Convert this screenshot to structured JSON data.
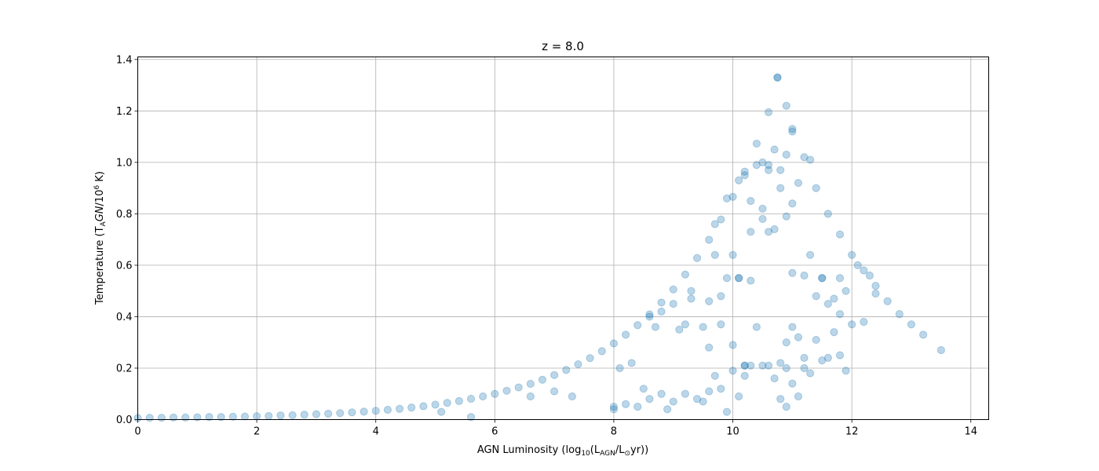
{
  "chart_data": {
    "type": "scatter",
    "title": "z = 8.0",
    "xlabel": "AGN Luminosity (log10(LAGN/L⊙yr))",
    "xlabel_parts": {
      "prefix": "AGN Luminosity (log",
      "sub1": "10",
      "mid": "(L",
      "sub2": "AGN",
      "mid2": "/L",
      "sub3": "⊙",
      "suffix": "yr))"
    },
    "ylabel": "Temperature (TAGN/10^6 K)",
    "ylabel_parts": {
      "prefix": "Temperature (T",
      "sub": "A",
      "italic": "GN",
      "mid": "/10",
      "sup": "6",
      "suffix": " K)"
    },
    "xlim": [
      0,
      14.3
    ],
    "ylim": [
      0,
      1.41
    ],
    "xticks": [
      0,
      2,
      4,
      6,
      8,
      10,
      12,
      14
    ],
    "xtick_labels": [
      "0",
      "2",
      "4",
      "6",
      "8",
      "10",
      "12",
      "14"
    ],
    "yticks": [
      0.0,
      0.2,
      0.4,
      0.6,
      0.8,
      1.0,
      1.2,
      1.4
    ],
    "ytick_labels": [
      "0.0",
      "0.2",
      "0.4",
      "0.6",
      "0.8",
      "1.0",
      "1.2",
      "1.4"
    ],
    "grid": true,
    "marker_color": "#1f77b4",
    "marker_alpha": 0.3,
    "series": [
      {
        "x": [
          8.0,
          8.2,
          8.4,
          8.5,
          8.6,
          8.8,
          8.9,
          9.0,
          9.2,
          9.4,
          9.5,
          9.6,
          9.7,
          9.8,
          9.9,
          10.0,
          10.1,
          10.2,
          10.3,
          10.5,
          10.7,
          10.8,
          10.9,
          11.0,
          11.1,
          11.2,
          11.3,
          11.5,
          11.6,
          11.7,
          11.8,
          11.9,
          12.0,
          12.2,
          8.1,
          8.3,
          8.6,
          8.8,
          9.1,
          9.3,
          9.5,
          9.8,
          10.0,
          10.2,
          10.4,
          10.6,
          10.8,
          11.0,
          11.2,
          11.4,
          11.6,
          11.8,
          9.6,
          9.9,
          10.1,
          10.3,
          10.5,
          10.7,
          10.9,
          11.1,
          11.3,
          11.5,
          11.7,
          9.0,
          9.3,
          9.7,
          10.0,
          10.3,
          10.6,
          10.9,
          11.2,
          11.5,
          11.9,
          12.1,
          12.3,
          8.7,
          9.2,
          9.6,
          10.1,
          10.6,
          11.0,
          11.4,
          11.8,
          9.9,
          10.2,
          10.5,
          10.8,
          11.1,
          9.7,
          10.1,
          10.4,
          10.7,
          11.0,
          11.3,
          10.3,
          10.6,
          10.9,
          10.5,
          10.8,
          11.0,
          5.1,
          5.6,
          6.6,
          7.0,
          7.3,
          8.0,
          12.4,
          9.8,
          10.9,
          10.2
        ],
        "y": [
          0.04,
          0.06,
          0.05,
          0.12,
          0.08,
          0.1,
          0.04,
          0.07,
          0.1,
          0.08,
          0.07,
          0.11,
          0.17,
          0.12,
          0.03,
          0.19,
          0.09,
          0.17,
          0.21,
          0.21,
          0.16,
          0.08,
          0.05,
          0.14,
          0.09,
          0.2,
          0.18,
          0.23,
          0.24,
          0.34,
          0.25,
          0.19,
          0.37,
          0.38,
          0.2,
          0.22,
          0.4,
          0.42,
          0.35,
          0.47,
          0.36,
          0.37,
          0.29,
          0.21,
          0.36,
          0.21,
          0.22,
          0.36,
          0.24,
          0.31,
          0.45,
          0.55,
          0.46,
          0.55,
          0.55,
          0.54,
          0.82,
          0.74,
          0.3,
          0.32,
          0.64,
          0.55,
          0.47,
          0.45,
          0.5,
          0.64,
          0.64,
          0.73,
          0.73,
          0.79,
          0.56,
          0.55,
          0.5,
          0.6,
          0.56,
          0.36,
          0.37,
          0.28,
          0.55,
          0.97,
          0.57,
          0.48,
          0.41,
          0.86,
          0.95,
          1.0,
          0.97,
          0.92,
          0.76,
          0.93,
          0.99,
          1.05,
          1.12,
          1.01,
          0.85,
          0.99,
          1.03,
          0.78,
          0.9,
          0.84,
          0.03,
          0.01,
          0.09,
          0.11,
          0.09,
          0.05,
          0.49,
          0.48,
          0.2,
          0.21
        ]
      },
      {
        "x": [
          0.0,
          0.2,
          0.4,
          0.6,
          0.8,
          1.0,
          1.2,
          1.4,
          1.6,
          1.8,
          2.0,
          2.2,
          2.4,
          2.6,
          2.8,
          3.0,
          3.2,
          3.4,
          3.6,
          3.8,
          4.0,
          4.2,
          4.4,
          4.6,
          4.8,
          5.0,
          5.2,
          5.4,
          5.6,
          5.8,
          6.0,
          6.2,
          6.4,
          6.6,
          6.8,
          7.0,
          7.2,
          7.4,
          7.6,
          7.8,
          8.0,
          8.2,
          8.4,
          8.6,
          8.8,
          9.0,
          9.2,
          9.4,
          9.6,
          9.8,
          10.0,
          10.2,
          10.4,
          10.6,
          10.75
        ],
        "y": [
          0.006,
          0.007,
          0.007,
          0.008,
          0.008,
          0.009,
          0.01,
          0.01,
          0.011,
          0.012,
          0.013,
          0.014,
          0.016,
          0.017,
          0.019,
          0.021,
          0.023,
          0.025,
          0.028,
          0.031,
          0.034,
          0.038,
          0.042,
          0.047,
          0.052,
          0.058,
          0.065,
          0.072,
          0.081,
          0.09,
          0.1,
          0.112,
          0.125,
          0.139,
          0.155,
          0.173,
          0.193,
          0.215,
          0.239,
          0.266,
          0.296,
          0.33,
          0.367,
          0.409,
          0.455,
          0.506,
          0.564,
          0.628,
          0.699,
          0.778,
          0.866,
          0.964,
          1.073,
          1.195,
          1.33
        ]
      },
      {
        "x": [
          10.75,
          10.9,
          11.0,
          11.2,
          11.4,
          11.6,
          11.8,
          12.0,
          12.2,
          12.4,
          12.6,
          12.8,
          13.0,
          13.2,
          13.5
        ],
        "y": [
          1.33,
          1.22,
          1.13,
          1.02,
          0.9,
          0.8,
          0.72,
          0.64,
          0.58,
          0.52,
          0.46,
          0.41,
          0.37,
          0.33,
          0.27
        ]
      }
    ]
  }
}
